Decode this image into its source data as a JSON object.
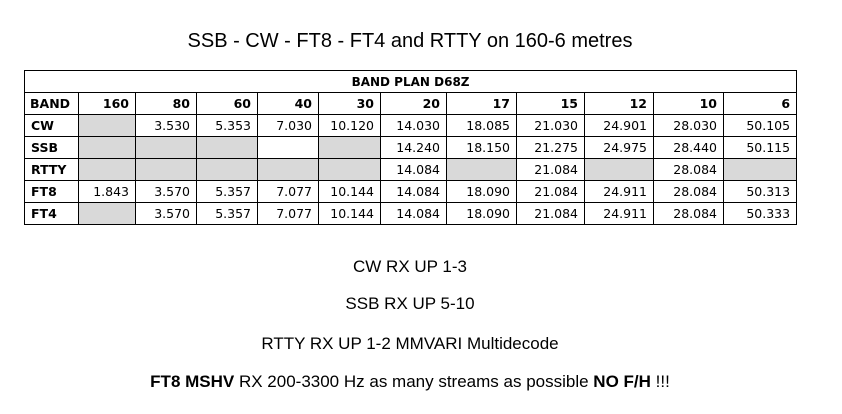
{
  "title": "SSB - CW - FT8 - FT4 and RTTY on 160-6 metres",
  "table": {
    "heading": "BAND PLAN D68Z",
    "band_label": "BAND",
    "bands": [
      "160",
      "80",
      "60",
      "40",
      "30",
      "20",
      "17",
      "15",
      "12",
      "10",
      "6"
    ],
    "rows": [
      {
        "mode": "CW",
        "cells": [
          {
            "v": "",
            "s": "grey"
          },
          {
            "v": "3.530"
          },
          {
            "v": "5.353"
          },
          {
            "v": "7.030"
          },
          {
            "v": "10.120"
          },
          {
            "v": "14.030"
          },
          {
            "v": "18.085"
          },
          {
            "v": "21.030"
          },
          {
            "v": "24.901"
          },
          {
            "v": "28.030"
          },
          {
            "v": "50.105"
          }
        ]
      },
      {
        "mode": "SSB",
        "cells": [
          {
            "v": "",
            "s": "grey"
          },
          {
            "v": "",
            "s": "grey"
          },
          {
            "v": "",
            "s": "grey"
          },
          {
            "v": "",
            "s": "white"
          },
          {
            "v": "",
            "s": "grey"
          },
          {
            "v": "14.240"
          },
          {
            "v": "18.150"
          },
          {
            "v": "21.275"
          },
          {
            "v": "24.975"
          },
          {
            "v": "28.440"
          },
          {
            "v": "50.115"
          }
        ]
      },
      {
        "mode": "RTTY",
        "cells": [
          {
            "v": "",
            "s": "grey"
          },
          {
            "v": "",
            "s": "grey"
          },
          {
            "v": "",
            "s": "grey"
          },
          {
            "v": "",
            "s": "grey"
          },
          {
            "v": "",
            "s": "grey"
          },
          {
            "v": "14.084"
          },
          {
            "v": "",
            "s": "grey"
          },
          {
            "v": "21.084"
          },
          {
            "v": "",
            "s": "grey"
          },
          {
            "v": "28.084"
          },
          {
            "v": "",
            "s": "grey"
          }
        ]
      },
      {
        "mode": "FT8",
        "cells": [
          {
            "v": "1.843"
          },
          {
            "v": "3.570"
          },
          {
            "v": "5.357"
          },
          {
            "v": "7.077"
          },
          {
            "v": "10.144"
          },
          {
            "v": "14.084"
          },
          {
            "v": "18.090"
          },
          {
            "v": "21.084"
          },
          {
            "v": "24.911"
          },
          {
            "v": "28.084"
          },
          {
            "v": "50.313"
          }
        ]
      },
      {
        "mode": "FT4",
        "cells": [
          {
            "v": "",
            "s": "grey"
          },
          {
            "v": "3.570"
          },
          {
            "v": "5.357"
          },
          {
            "v": "7.077"
          },
          {
            "v": "10.144"
          },
          {
            "v": "14.084"
          },
          {
            "v": "18.090"
          },
          {
            "v": "21.084"
          },
          {
            "v": "24.911"
          },
          {
            "v": "28.084"
          },
          {
            "v": "50.333"
          }
        ]
      }
    ]
  },
  "notes": {
    "cw": "CW RX UP 1-3",
    "ssb": "SSB RX UP 5-10",
    "rtty": "RTTY RX UP 1-2 MMVARI Multidecode",
    "ft8_bold1": "FT8 MSHV",
    "ft8_mid": " RX 200-3300 Hz as many streams as possible ",
    "ft8_bold2": "NO F/H",
    "ft8_end": " !!!"
  },
  "colors": {
    "empty_cell": "#d9d9d9"
  }
}
